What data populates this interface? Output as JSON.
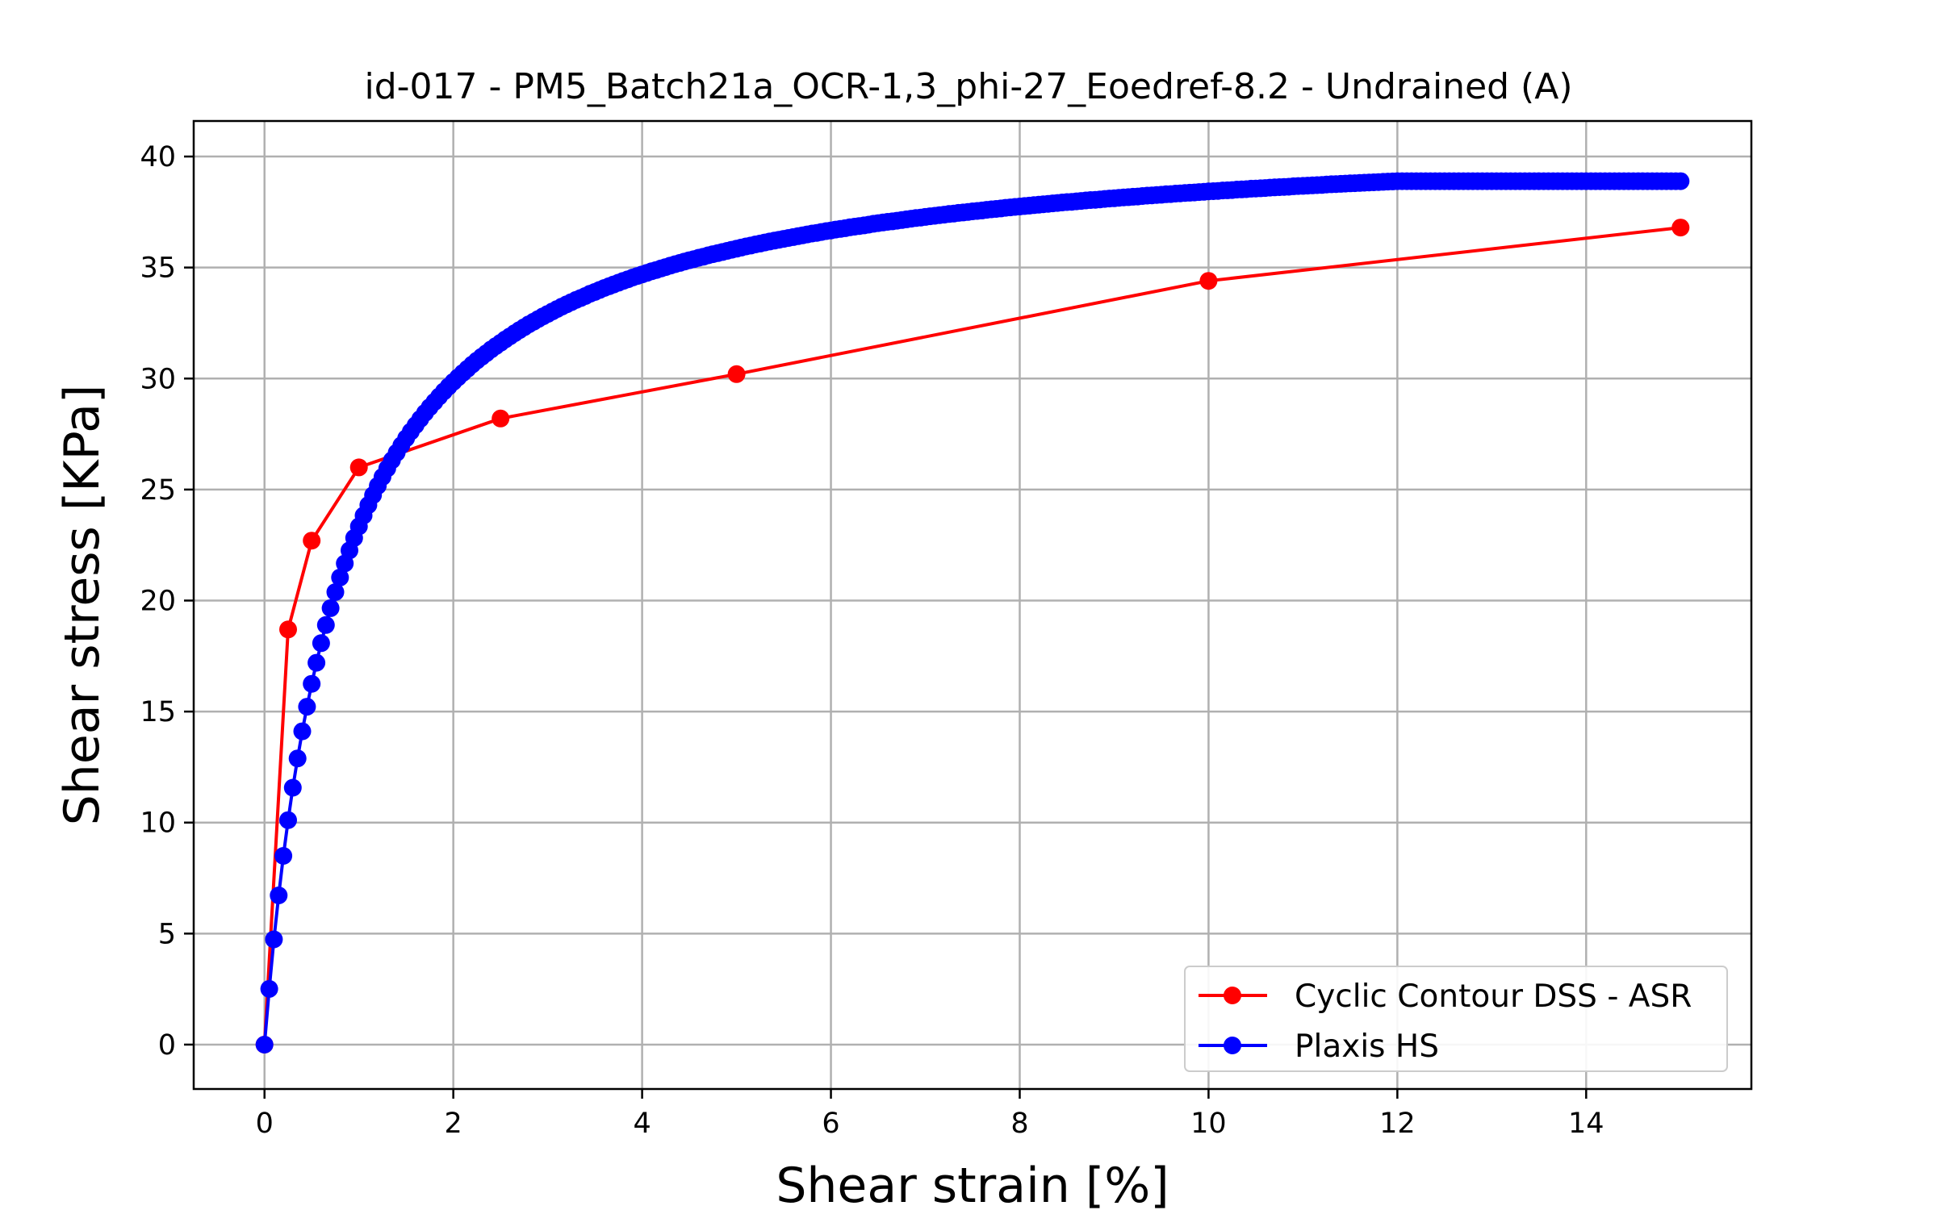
{
  "chart_data": {
    "type": "line",
    "title": "id-017 - PM5_Batch21a_OCR-1,3_phi-27_Eoedref-8.2 - Undrained (A)",
    "xlabel": "Shear strain [%]",
    "ylabel": "Shear stress [KPa]",
    "xlim": [
      -0.75,
      15.75
    ],
    "ylim": [
      -2,
      41.6
    ],
    "xticks": [
      0,
      2,
      4,
      6,
      8,
      10,
      12,
      14
    ],
    "yticks": [
      0,
      5,
      10,
      15,
      20,
      25,
      30,
      35,
      40
    ],
    "grid": true,
    "legend_position": "lower-right",
    "series": [
      {
        "name": "Cyclic Contour DSS - ASR",
        "color": "#ff0000",
        "marker": "circle",
        "x": [
          0,
          0.25,
          0.5,
          1.0,
          2.5,
          5.0,
          10.0,
          15.0
        ],
        "y": [
          0,
          18.7,
          22.7,
          26.0,
          28.2,
          30.2,
          34.4,
          36.8
        ]
      },
      {
        "name": "Plaxis HS",
        "color": "#0000ff",
        "marker": "circle",
        "model": {
          "qmax": 41.4,
          "initial_slope": 53.5,
          "plateau_from": 12.0,
          "x_end": 15.0,
          "x_step": 0.05
        }
      }
    ]
  }
}
